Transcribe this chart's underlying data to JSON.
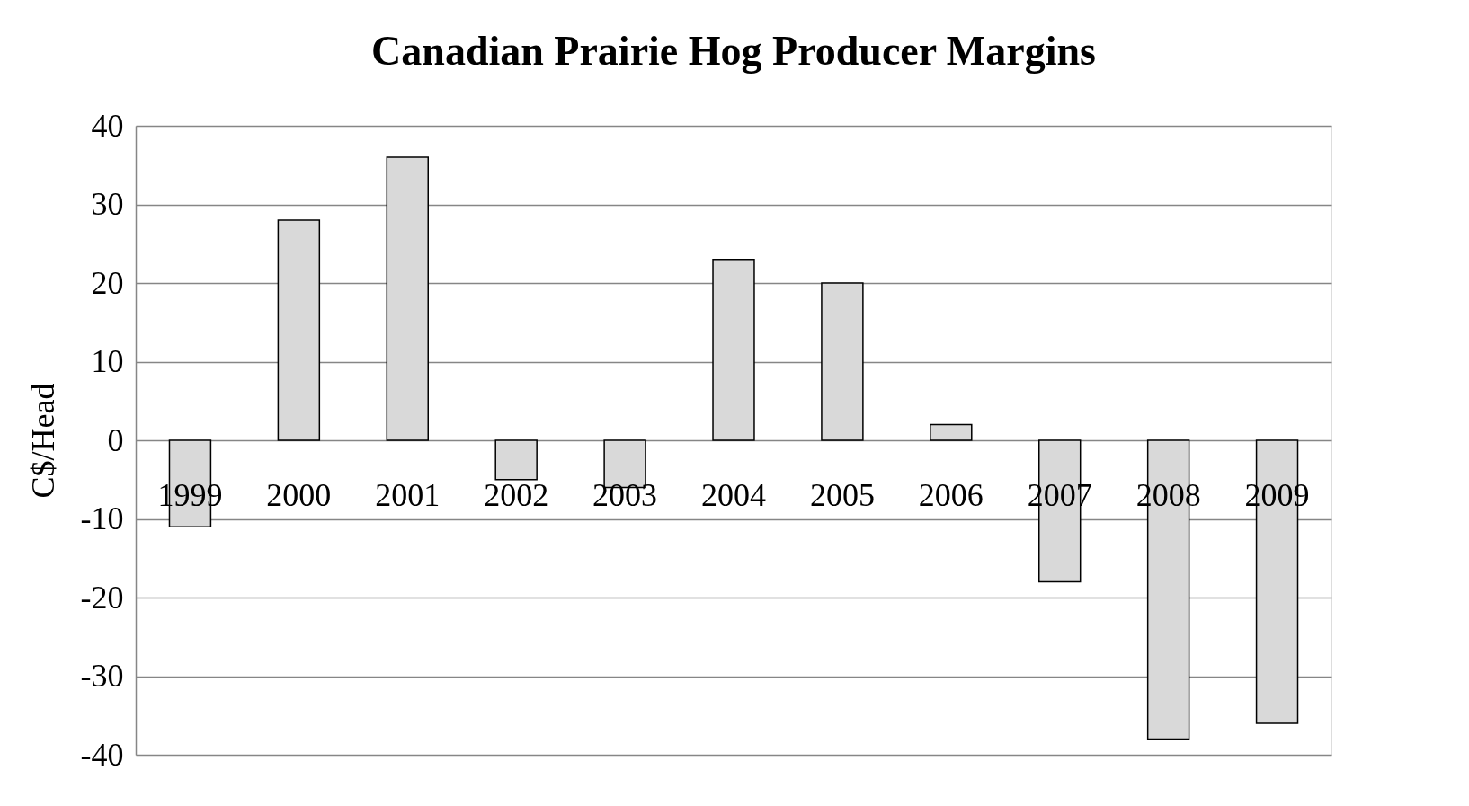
{
  "chart_data": {
    "type": "bar",
    "title": "Canadian Prairie Hog Producer Margins",
    "ylabel": "C$/Head",
    "categories": [
      "1999",
      "2000",
      "2001",
      "2002",
      "2003",
      "2004",
      "2005",
      "2006",
      "2007",
      "2008",
      "2009"
    ],
    "values": [
      -11,
      28,
      36,
      -5,
      -6,
      23,
      20,
      2,
      -18,
      -38,
      -36
    ],
    "color": "#d9d9d9",
    "ylim": [
      -40,
      40
    ],
    "yticks": [
      -40,
      -30,
      -20,
      -10,
      0,
      10,
      20,
      30,
      40
    ],
    "grid": "y"
  }
}
